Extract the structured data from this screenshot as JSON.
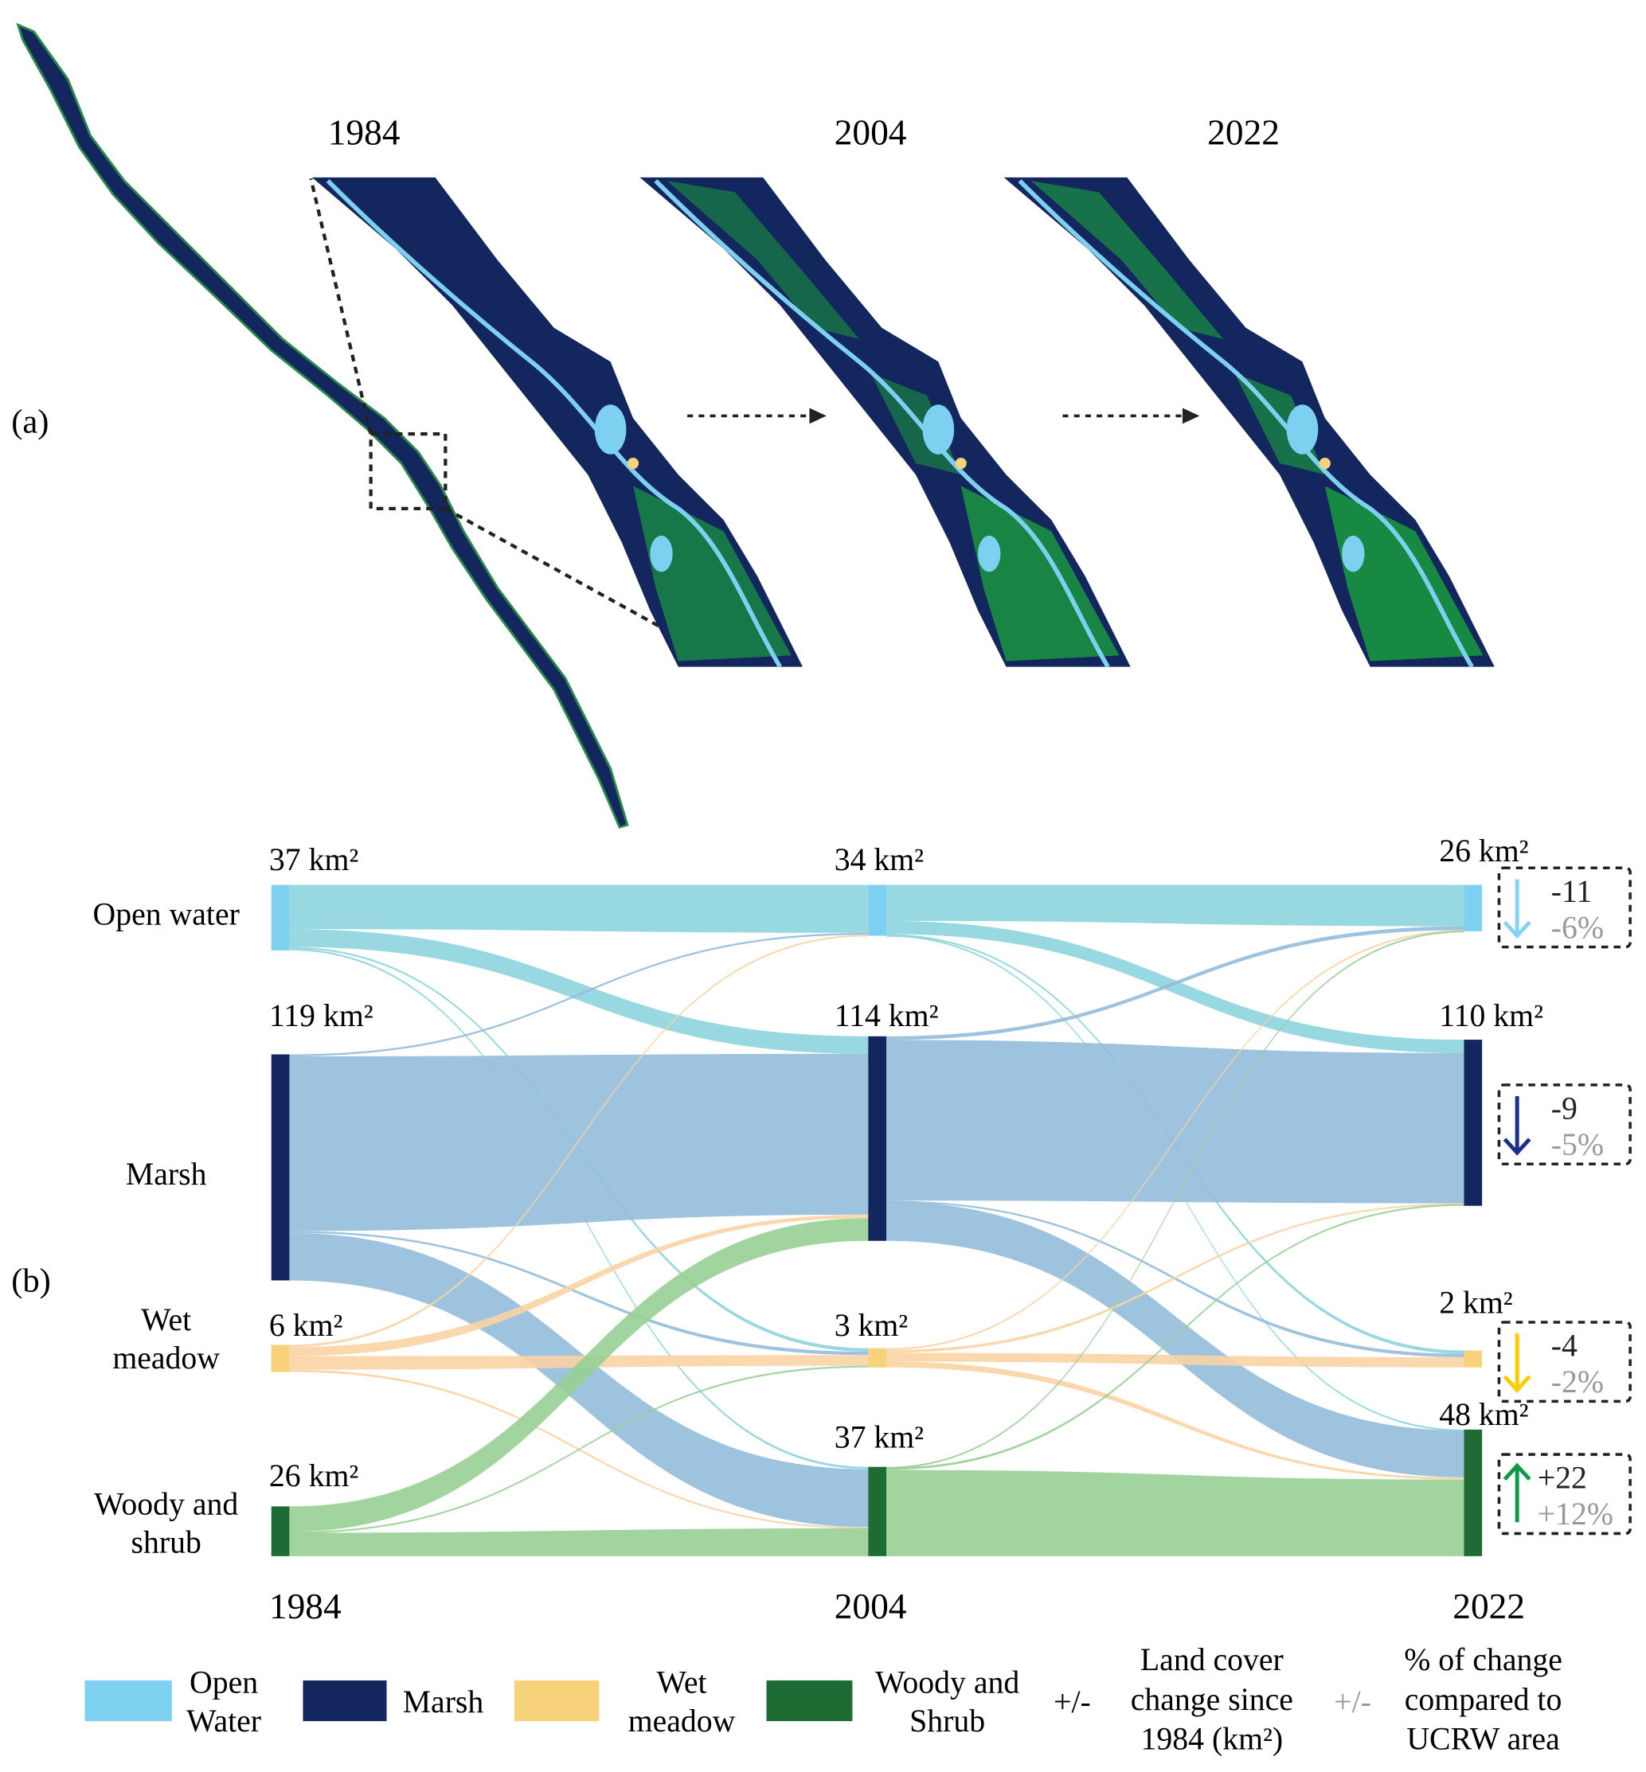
{
  "panel_a": {
    "label": "(a)",
    "years": [
      "1984",
      "2004",
      "2022"
    ]
  },
  "panel_b": {
    "label": "(b)",
    "row_labels": [
      "Open water",
      "Marsh",
      "Wet\nmeadow",
      "Woody and\nshrub"
    ],
    "year_labels": [
      "1984",
      "2004",
      "2022"
    ]
  },
  "colors": {
    "open_water": "#7dd0f0",
    "marsh": "#13275e",
    "wet_meadow": "#f8d27a",
    "woody": "#1f6b34",
    "flow_open_water": "#8dd4de",
    "flow_marsh": "#93bcdb",
    "flow_wet_meadow": "#fad3a3",
    "flow_woody": "#97cf95"
  },
  "chart_data": {
    "type": "sankey",
    "unit": "km²",
    "categories": [
      "Open water",
      "Marsh",
      "Wet meadow",
      "Woody and shrub"
    ],
    "years": [
      "1984",
      "2004",
      "2022"
    ],
    "node_values": {
      "1984": [
        37,
        119,
        6,
        26
      ],
      "2004": [
        34,
        114,
        3,
        37
      ],
      "2022": [
        26,
        110,
        2,
        48
      ]
    },
    "node_labels": {
      "1984": [
        "37 km²",
        "119 km²",
        "6 km²",
        "26 km²"
      ],
      "2004": [
        "34 km²",
        "114 km²",
        "3 km²",
        "37 km²"
      ],
      "2022": [
        "26 km²",
        "110 km²",
        "2 km²",
        "48 km²"
      ]
    },
    "flows_1984_2004": [
      [
        25,
        10,
        1,
        1
      ],
      [
        1,
        92,
        1,
        25
      ],
      [
        0.5,
        2,
        3,
        0.5
      ],
      [
        0,
        13,
        0.5,
        12
      ]
    ],
    "flows_2004_2022": [
      [
        22,
        8,
        0.5,
        0.5
      ],
      [
        2,
        90,
        0.5,
        22
      ],
      [
        0.3,
        0.5,
        1.5,
        1
      ],
      [
        0.3,
        1,
        0,
        36
      ]
    ],
    "changes": [
      {
        "abs": "-11",
        "pct": "-6%",
        "direction": "down",
        "color": "#86d3f5"
      },
      {
        "abs": "-9",
        "pct": "-5%",
        "direction": "down",
        "color": "#1d2f8c"
      },
      {
        "abs": "-4",
        "pct": "-2%",
        "direction": "down",
        "color": "#ffcc00"
      },
      {
        "abs": "+22",
        "pct": "+12%",
        "direction": "up",
        "color": "#0e9a47"
      }
    ]
  },
  "legend": {
    "items": [
      {
        "label": "Open\nWater",
        "color": "#7dd0f0"
      },
      {
        "label": "Marsh",
        "color": "#13275e"
      },
      {
        "label": "Wet\nmeadow",
        "color": "#f8d27a"
      },
      {
        "label": "Woody and\nShrub",
        "color": "#1f6b34"
      }
    ],
    "abs_symbol": "+/-",
    "abs_text": "Land cover\nchange since\n1984 (km²)",
    "pct_symbol": "+/-",
    "pct_text": "% of change\ncompared to\nUCRW area"
  }
}
